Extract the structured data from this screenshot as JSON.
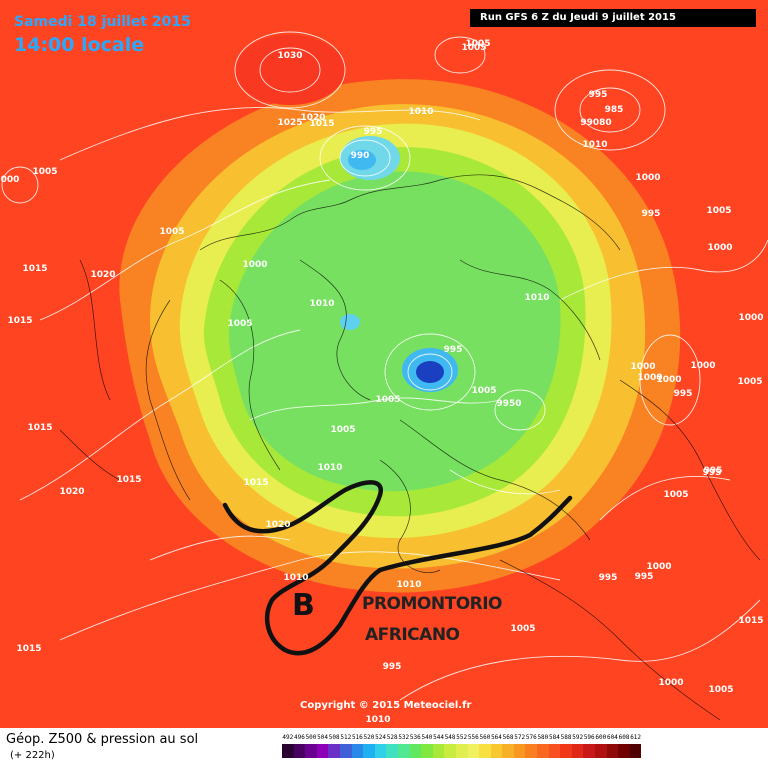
{
  "header": {
    "date": "Samedi 18 juillet 2015",
    "time": "14:00 locale",
    "run": "Run GFS 6 Z du Jeudi 9 juillet 2015"
  },
  "copyright": "Copyright © 2015 Meteociel.fr",
  "footer": {
    "title": "Géop. Z500 & pression au sol",
    "lead": "(+ 222h)"
  },
  "annotations": {
    "low_letter": "B",
    "line1": "PROMONTORIO",
    "line2": "AFRICANO"
  },
  "colors": {
    "annotation_stroke": "#111111",
    "isobar": "#ffffff"
  },
  "isobar_labels": [
    {
      "text": "1030"
    },
    {
      "text": "1005"
    },
    {
      "text": "1025"
    },
    {
      "text": "1020"
    },
    {
      "text": "1015"
    },
    {
      "text": "995"
    },
    {
      "text": "990"
    },
    {
      "text": "1010"
    },
    {
      "text": "995"
    },
    {
      "text": "1010"
    },
    {
      "text": "985"
    },
    {
      "text": "99080"
    },
    {
      "text": "1000"
    },
    {
      "text": "1005"
    },
    {
      "text": "995"
    },
    {
      "text": "1000"
    },
    {
      "text": "000"
    },
    {
      "text": "1005"
    },
    {
      "text": "1005"
    },
    {
      "text": "1015"
    },
    {
      "text": "1020"
    },
    {
      "text": "1000"
    },
    {
      "text": "1015"
    },
    {
      "text": "1005"
    },
    {
      "text": "1010"
    },
    {
      "text": "1010"
    },
    {
      "text": "1000"
    },
    {
      "text": "995"
    },
    {
      "text": "1000"
    },
    {
      "text": "995"
    },
    {
      "text": "1000"
    },
    {
      "text": "1005"
    },
    {
      "text": "995"
    },
    {
      "text": "1005"
    },
    {
      "text": "9950"
    },
    {
      "text": "1005"
    },
    {
      "text": "1005"
    },
    {
      "text": "1015"
    },
    {
      "text": "1020"
    },
    {
      "text": "1015"
    },
    {
      "text": "1015"
    },
    {
      "text": "1010"
    },
    {
      "text": "1020"
    },
    {
      "text": "1010"
    },
    {
      "text": "995"
    },
    {
      "text": "1005"
    },
    {
      "text": "1000"
    },
    {
      "text": "995"
    },
    {
      "text": "995"
    },
    {
      "text": "995"
    },
    {
      "text": "1015"
    },
    {
      "text": "1005"
    },
    {
      "text": "1015"
    },
    {
      "text": "1005"
    },
    {
      "text": "1000"
    },
    {
      "text": "1005"
    },
    {
      "text": "1000"
    },
    {
      "text": "1010"
    },
    {
      "text": "1010"
    },
    {
      "text": "1000"
    }
  ],
  "scale_labels": [
    "492",
    "496",
    "500",
    "504",
    "508",
    "512",
    "516",
    "520",
    "524",
    "528",
    "532",
    "536",
    "540",
    "544",
    "548",
    "552",
    "556",
    "560",
    "564",
    "568",
    "572",
    "576",
    "580",
    "584",
    "588",
    "592",
    "596",
    "600",
    "604",
    "608",
    "612"
  ],
  "scale_colors": [
    "#2a0030",
    "#4a0060",
    "#6a0090",
    "#8c00b8",
    "#6a30c8",
    "#4060d8",
    "#2a88e8",
    "#20b0f0",
    "#30d0e8",
    "#40e0c0",
    "#50e890",
    "#60e860",
    "#80e840",
    "#a8e838",
    "#c8ec40",
    "#e0ee50",
    "#f0f060",
    "#f8e040",
    "#f8c830",
    "#f8b028",
    "#f89820",
    "#f88020",
    "#f86820",
    "#f85020",
    "#f03818",
    "#e02818",
    "#c81818",
    "#b01010",
    "#900808",
    "#700000",
    "#500000"
  ]
}
